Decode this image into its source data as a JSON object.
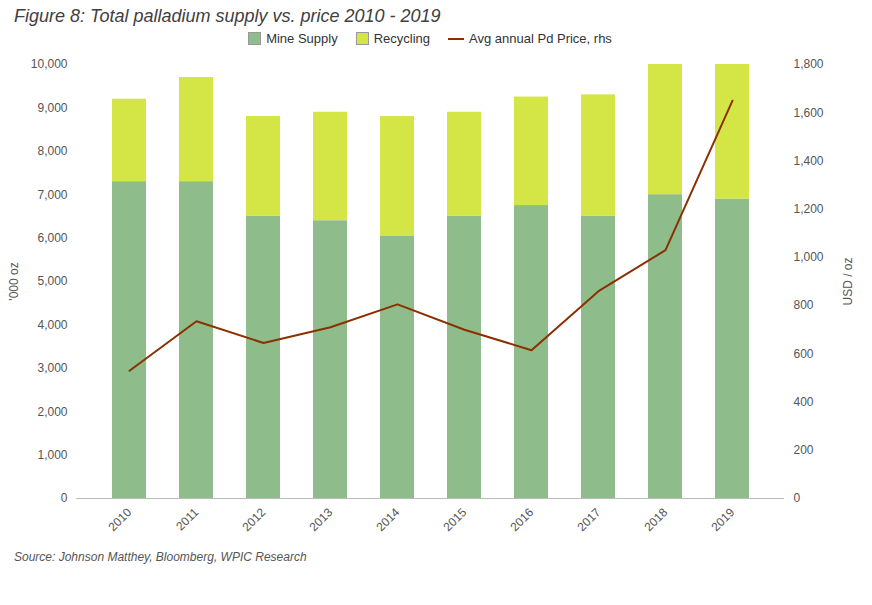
{
  "chart_data": {
    "type": "bar",
    "title": "Figure 8: Total palladium supply vs. price 2010 - 2019",
    "subtitle": "Source: Johnson Matthey, Bloomberg, WPIC Research",
    "stacked": true,
    "grid": false,
    "legend": "top",
    "categories": [
      "2010",
      "2011",
      "2012",
      "2013",
      "2014",
      "2015",
      "2016",
      "2017",
      "2018",
      "2019"
    ],
    "series": [
      {
        "name": "Mine Supply",
        "type": "bar",
        "color": "#8fbc8b",
        "values": [
          7300,
          7300,
          6500,
          6400,
          6050,
          6500,
          6750,
          6500,
          7000,
          6900
        ]
      },
      {
        "name": "Recycling",
        "type": "bar",
        "color": "#d4e645",
        "values": [
          1900,
          2400,
          2300,
          2500,
          2750,
          2400,
          2500,
          2800,
          3000,
          3100
        ]
      },
      {
        "name": "Avg annual Pd Price, rhs",
        "type": "line",
        "axis": "y2",
        "color": "#8b3000",
        "values": [
          530,
          735,
          645,
          710,
          805,
          700,
          615,
          860,
          1030,
          1650
        ]
      }
    ],
    "ylabel": "'000 oz",
    "y2label": "USD / oz",
    "ylim": [
      0,
      10000
    ],
    "yticks": [
      0,
      {
        "value": 1000,
        "label": "1,000"
      },
      {
        "value": 2000,
        "label": "2,000"
      },
      {
        "value": 3000,
        "label": "3,000"
      },
      {
        "value": 4000,
        "label": "4,000"
      },
      {
        "value": 5000,
        "label": "5,000"
      },
      {
        "value": 6000,
        "label": "6,000"
      },
      {
        "value": 7000,
        "label": "7,000"
      },
      {
        "value": 8000,
        "label": "8,000"
      },
      {
        "value": 9000,
        "label": "9,000"
      },
      {
        "value": 10000,
        "label": "10,000"
      }
    ],
    "y2lim": [
      0,
      1800
    ],
    "y2ticks": [
      0,
      200,
      400,
      600,
      800,
      {
        "value": 1000,
        "label": "1,000"
      },
      {
        "value": 1200,
        "label": "1,200"
      },
      {
        "value": 1400,
        "label": "1,400"
      },
      {
        "value": 1600,
        "label": "1,600"
      },
      {
        "value": 1800,
        "label": "1,800"
      }
    ]
  }
}
